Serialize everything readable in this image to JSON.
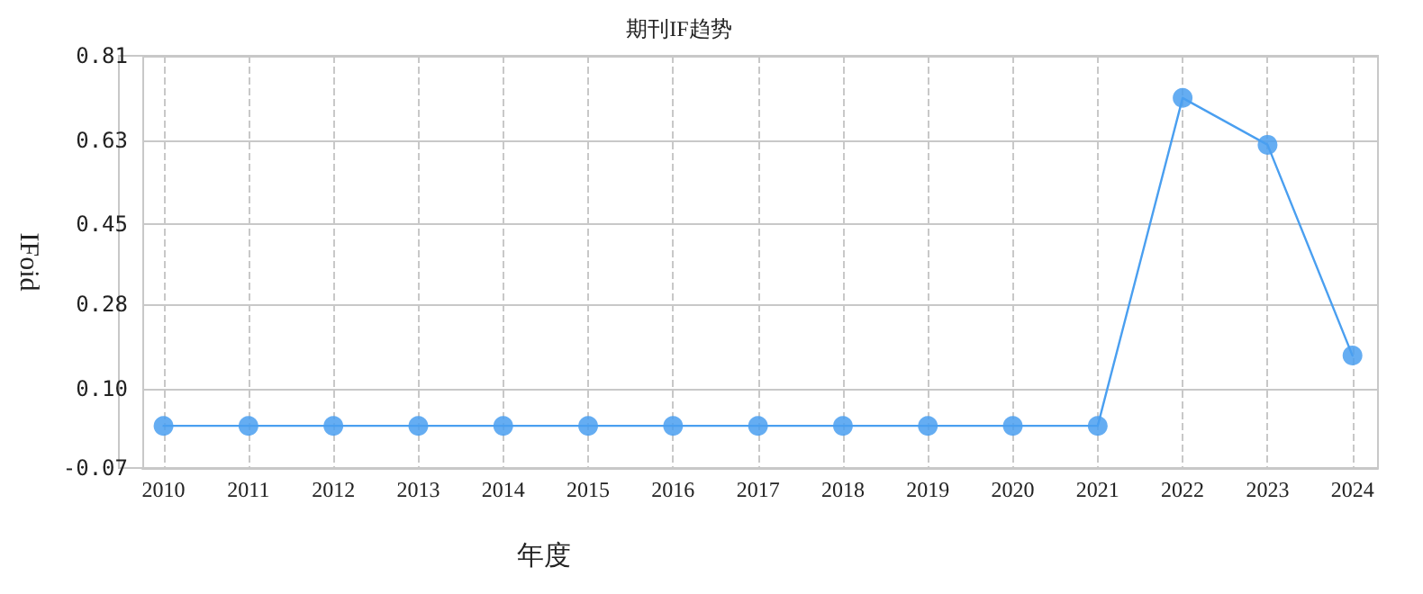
{
  "chart_data": {
    "type": "line",
    "title": "期刊IF趋势",
    "xlabel": "年度",
    "ylabel": "IFoid",
    "x": [
      2010,
      2011,
      2012,
      2013,
      2014,
      2015,
      2016,
      2017,
      2018,
      2019,
      2020,
      2021,
      2022,
      2023,
      2024
    ],
    "xlim": [
      2009.75,
      2024.3
    ],
    "xticks": [
      2010,
      2011,
      2012,
      2013,
      2014,
      2015,
      2016,
      2017,
      2018,
      2019,
      2020,
      2021,
      2022,
      2023,
      2024
    ],
    "series": [
      {
        "color": "#4a9ff0",
        "values": [
          0.02,
          0.02,
          0.02,
          0.02,
          0.02,
          0.02,
          0.02,
          0.02,
          0.02,
          0.02,
          0.02,
          0.02,
          0.72,
          0.62,
          0.17
        ]
      }
    ],
    "ylim": [
      -0.07,
      0.81
    ],
    "yticks": [
      -0.07,
      {
        "value": 0.1,
        "label": "0.10"
      },
      0.28,
      0.45,
      0.63,
      0.81
    ],
    "grid": true,
    "marker": "circle",
    "line_style": "solid"
  }
}
